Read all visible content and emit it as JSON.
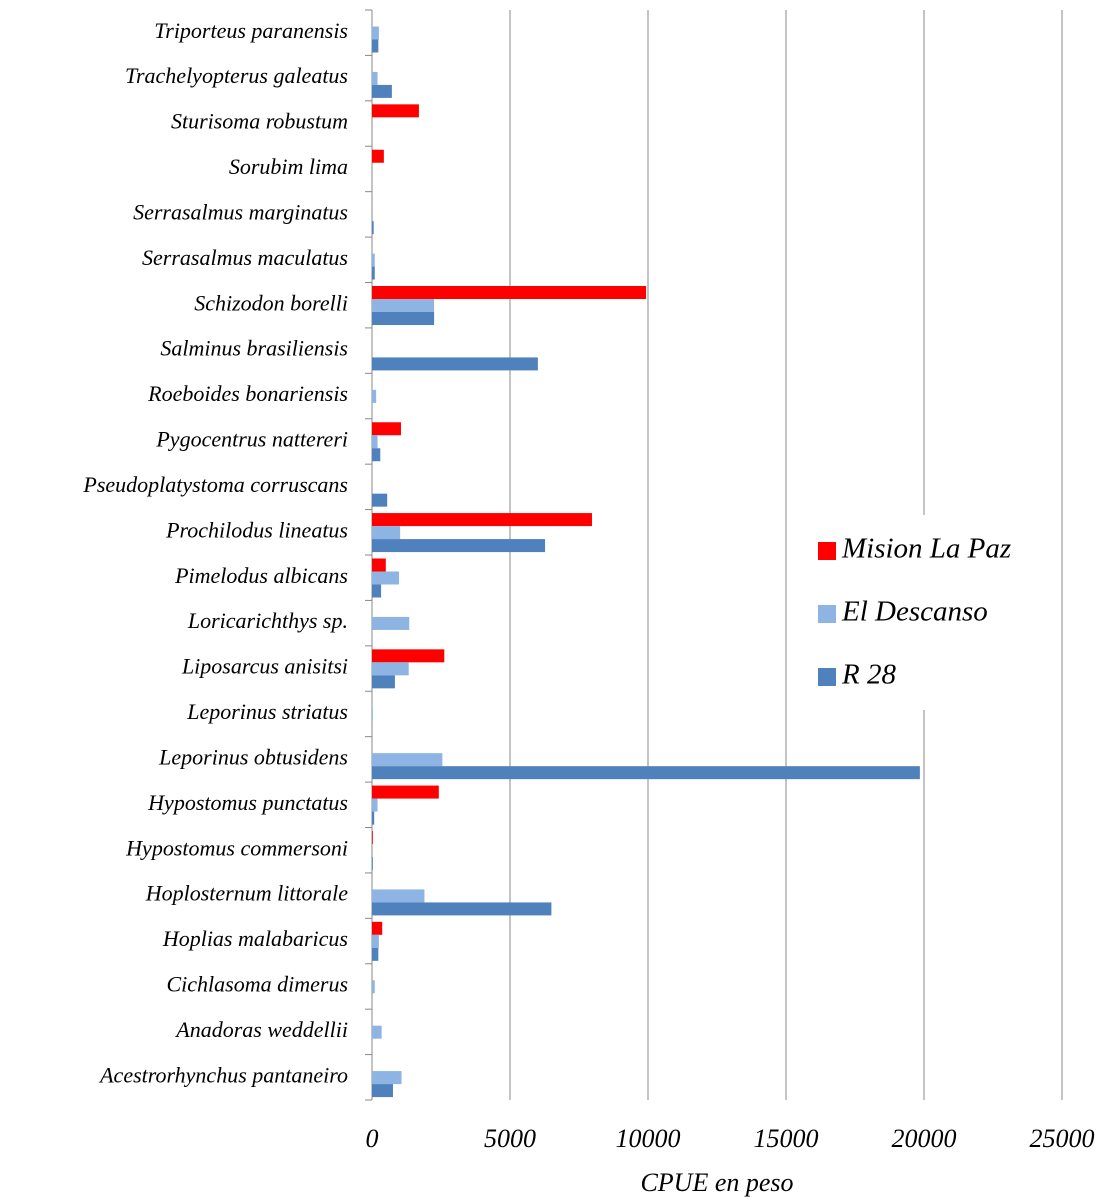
{
  "chart_data": {
    "type": "bar",
    "orientation": "horizontal",
    "x_label": "CPUE en peso",
    "categories": [
      "Triporteus paranensis",
      "Trachelyopterus galeatus",
      "Sturisoma robustum",
      "Sorubim lima",
      "Serrasalmus marginatus",
      "Serrasalmus maculatus",
      "Schizodon borelli",
      "Salminus brasiliensis",
      "Roeboides bonariensis",
      "Pygocentrus nattereri",
      "Pseudoplatystoma corruscans",
      "Prochilodus lineatus",
      "Pimelodus albicans",
      "Loricarichthys sp.",
      "Liposarcus anisitsi",
      "Leporinus striatus",
      "Leporinus obtusidens",
      "Hypostomus punctatus",
      "Hypostomus commersoni",
      "Hoplosternum littorale",
      "Hoplias malabaricus",
      "Cichlasoma dimerus",
      "Anadoras weddellii",
      "Acestrorhynchus pantaneiro"
    ],
    "series": [
      {
        "name": "Mision La Paz",
        "color": "#ff0000",
        "values": [
          0,
          0,
          1700,
          430,
          0,
          0,
          9930,
          0,
          0,
          1050,
          0,
          7970,
          500,
          0,
          2620,
          0,
          0,
          2420,
          30,
          0,
          370,
          0,
          0,
          0
        ]
      },
      {
        "name": "El Descanso",
        "color": "#8eb4e3",
        "values": [
          250,
          200,
          0,
          0,
          0,
          100,
          2250,
          0,
          150,
          200,
          0,
          1020,
          980,
          1350,
          1330,
          30,
          2550,
          200,
          0,
          1900,
          250,
          100,
          350,
          1070
        ]
      },
      {
        "name": "R 28",
        "color": "#4f81bd",
        "values": [
          230,
          720,
          0,
          0,
          60,
          100,
          2250,
          6010,
          0,
          300,
          550,
          6270,
          330,
          0,
          830,
          0,
          19850,
          80,
          30,
          6500,
          230,
          0,
          0,
          760
        ]
      }
    ],
    "xlim": [
      0,
      25000
    ],
    "xticks": [
      0,
      5000,
      10000,
      15000,
      20000,
      25000
    ],
    "grid": true,
    "legend": "right"
  }
}
